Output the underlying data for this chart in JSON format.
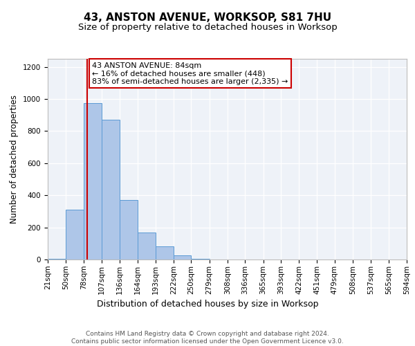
{
  "title": "43, ANSTON AVENUE, WORKSOP, S81 7HU",
  "subtitle": "Size of property relative to detached houses in Worksop",
  "xlabel": "Distribution of detached houses by size in Worksop",
  "ylabel": "Number of detached properties",
  "bar_edges": [
    21,
    50,
    78,
    107,
    136,
    164,
    193,
    222,
    250,
    279,
    308,
    336,
    365,
    393,
    422,
    451,
    479,
    508,
    537,
    565,
    594
  ],
  "bar_heights": [
    5,
    310,
    975,
    870,
    370,
    170,
    80,
    25,
    5,
    2,
    1,
    0,
    0,
    0,
    0,
    0,
    0,
    0,
    0,
    0
  ],
  "bar_color": "#aec6e8",
  "bar_edgecolor": "#5b9bd5",
  "property_size": 84,
  "annotation_text": "43 ANSTON AVENUE: 84sqm\n← 16% of detached houses are smaller (448)\n83% of semi-detached houses are larger (2,335) →",
  "annotation_box_color": "#ffffff",
  "annotation_box_edgecolor": "#cc0000",
  "vline_color": "#cc0000",
  "ylim": [
    0,
    1250
  ],
  "yticks": [
    0,
    200,
    400,
    600,
    800,
    1000,
    1200
  ],
  "bg_color": "#eef2f8",
  "footer": "Contains HM Land Registry data © Crown copyright and database right 2024.\nContains public sector information licensed under the Open Government Licence v3.0.",
  "title_fontsize": 11,
  "subtitle_fontsize": 9.5,
  "xlabel_fontsize": 9,
  "ylabel_fontsize": 8.5,
  "tick_fontsize": 7.5,
  "annotation_fontsize": 8,
  "footer_fontsize": 6.5
}
